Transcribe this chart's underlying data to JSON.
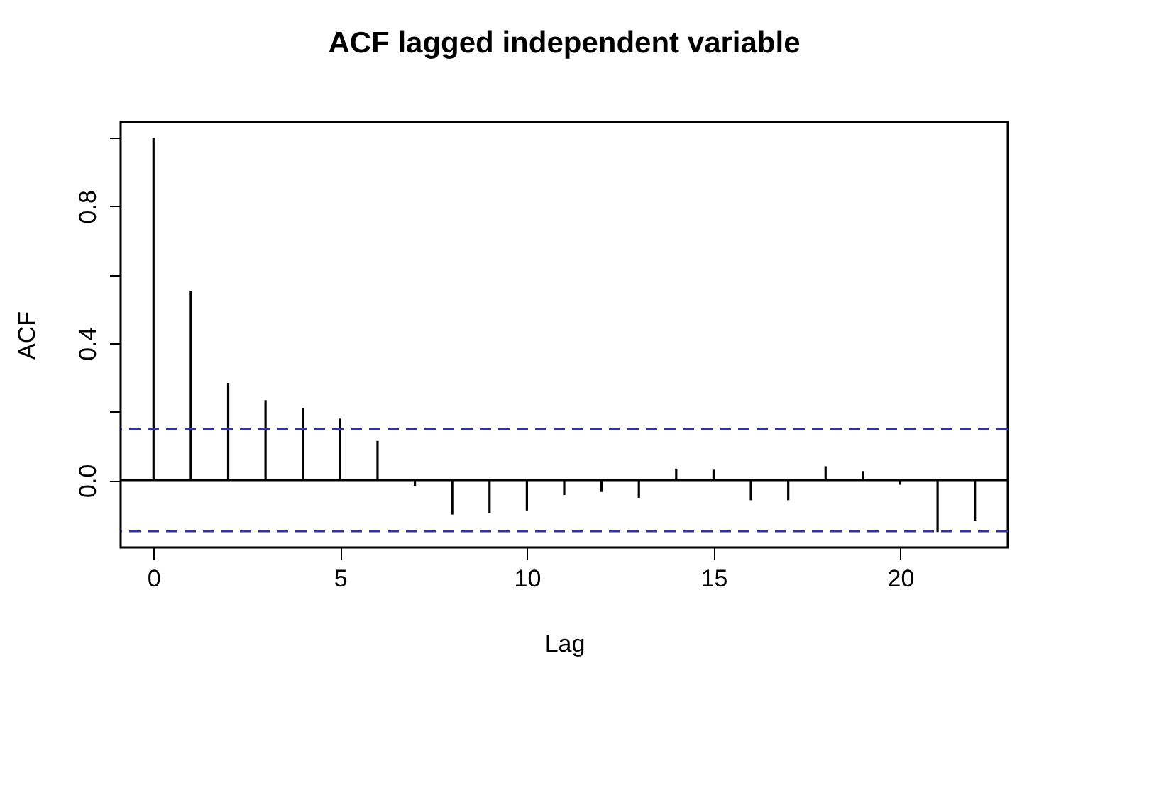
{
  "chart_data": {
    "type": "bar",
    "title": "ACF lagged independent variable",
    "xlabel": "Lag",
    "ylabel": "ACF",
    "x": [
      0,
      1,
      2,
      3,
      4,
      5,
      6,
      7,
      8,
      9,
      10,
      11,
      12,
      13,
      14,
      15,
      16,
      17,
      18,
      19,
      20,
      21,
      22
    ],
    "series": [
      {
        "color": "#000000",
        "values": [
          1.0,
          0.552,
          0.284,
          0.234,
          0.21,
          0.18,
          0.115,
          -0.016,
          -0.1,
          -0.095,
          -0.088,
          -0.043,
          -0.034,
          -0.051,
          0.034,
          0.031,
          -0.058,
          -0.058,
          0.041,
          0.027,
          -0.013,
          -0.151,
          -0.118
        ]
      }
    ],
    "xlim": [
      -0.88,
      22.88
    ],
    "xticks": [
      0,
      5,
      10,
      15,
      20
    ],
    "ylim": [
      -0.196,
      1.046
    ],
    "yticks": [
      {
        "value": 0,
        "label": "0.0"
      },
      {
        "value": 0.2,
        "label": null
      },
      {
        "value": 0.4,
        "label": "0.4"
      },
      {
        "value": 0.6,
        "label": null
      },
      {
        "value": 0.8,
        "label": "0.8"
      },
      {
        "value": 1.0,
        "label": null
      }
    ],
    "ref_lines": [
      {
        "axis": "y",
        "value": 0,
        "color": "#000000",
        "line_style": "solid"
      },
      {
        "axis": "y",
        "value": 0.149,
        "color": "#333399",
        "line_style": "dashed"
      },
      {
        "axis": "y",
        "value": -0.149,
        "color": "#333399",
        "line_style": "dashed"
      }
    ],
    "tick_labels": true
  }
}
